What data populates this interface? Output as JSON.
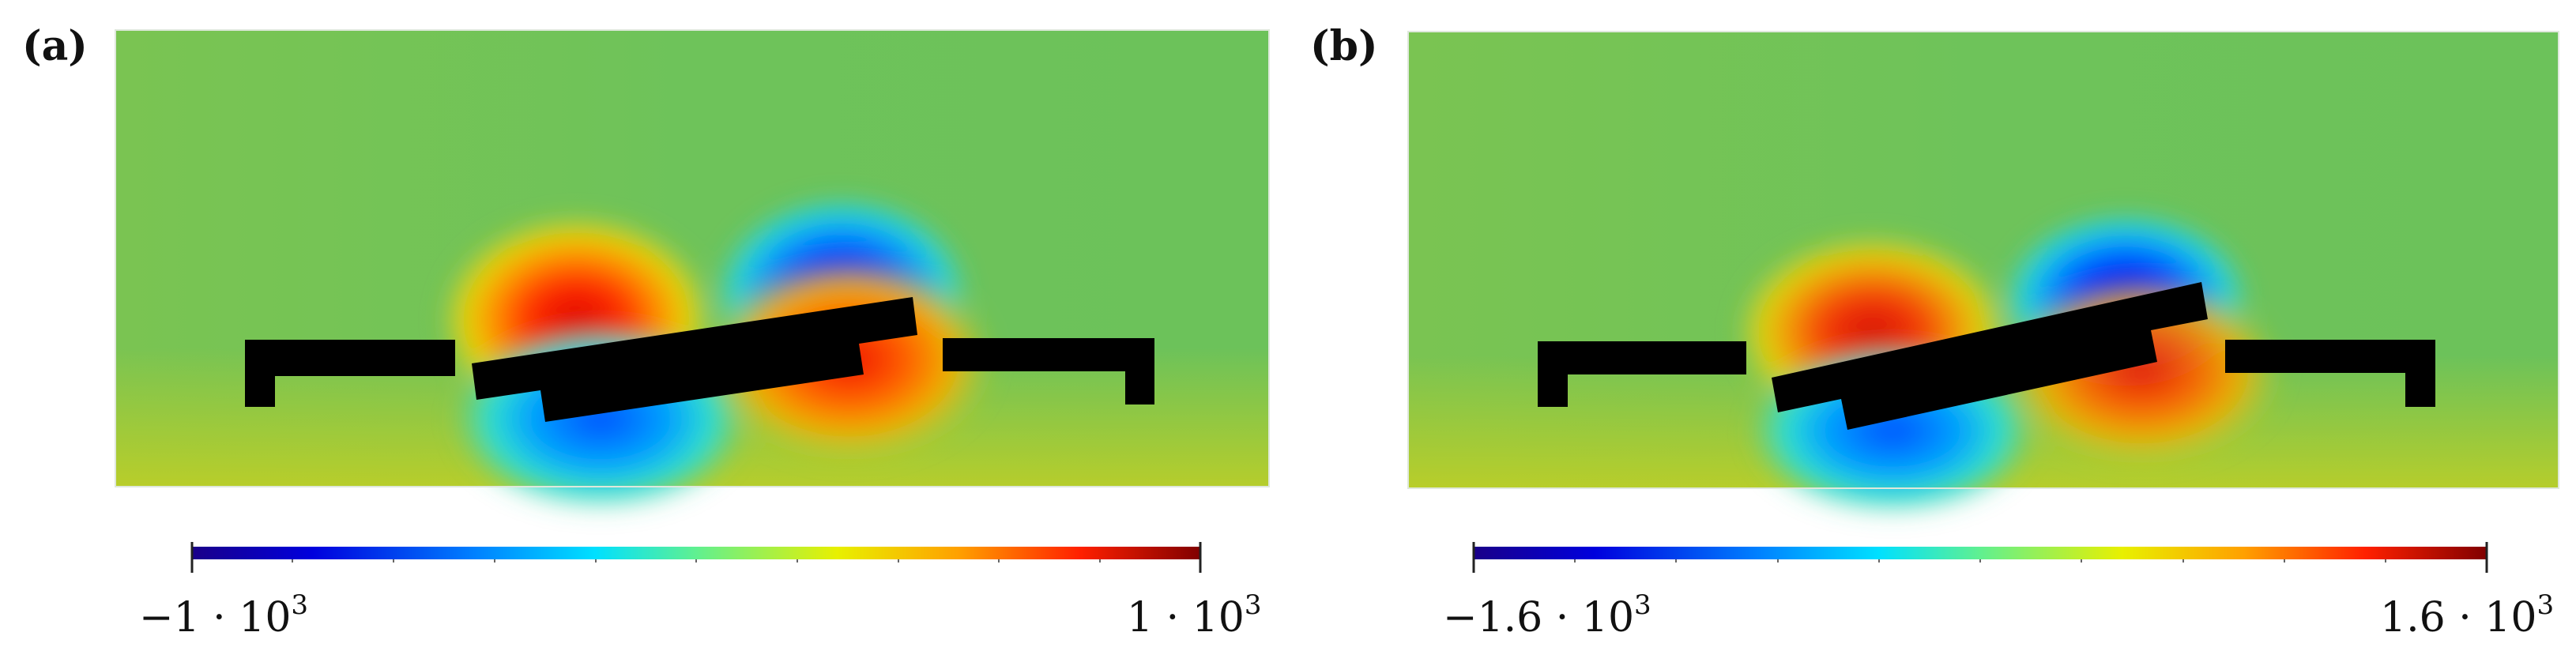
{
  "panels": [
    {
      "label": "(a)",
      "colorbar": {
        "min": -1000,
        "max": 1000,
        "min_label": "−1 · 10",
        "max_label": "1 · 10",
        "exponent": "3"
      }
    },
    {
      "label": "(b)",
      "colorbar": {
        "min": -1600,
        "max": 1600,
        "min_label": "−1.6 · 10",
        "max_label": "1.6 · 10",
        "exponent": "3"
      }
    }
  ],
  "colormap": {
    "name": "jet-like",
    "stops": [
      "#1a0088",
      "#0000dd",
      "#0080ff",
      "#00e0ff",
      "#50f0a0",
      "#e8f000",
      "#ffa000",
      "#ff2000",
      "#800000"
    ]
  },
  "colors": {
    "background_field": "#6cc25a",
    "obstacle": "#000000"
  }
}
